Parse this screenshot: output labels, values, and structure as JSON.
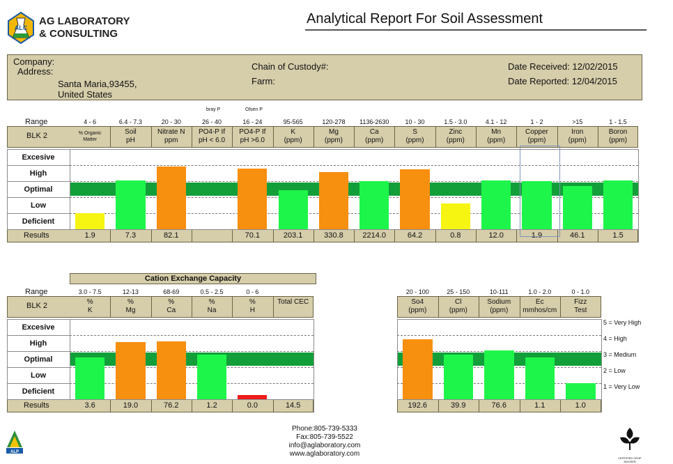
{
  "header": {
    "logo_line1": "AG LABORATORY",
    "logo_line2": "& CONSULTING",
    "logo_badge": "ALC",
    "title": "Analytical Report For Soil Assessment"
  },
  "info": {
    "company_label": "Company:",
    "address_label": "Address:",
    "address_line1": "Santa Maria,93455,",
    "address_line2": "United States",
    "custody_label": "Chain of Custody#:",
    "farm_label": "Farm:",
    "date_received": "Date Received: 12/02/2015",
    "date_reported": "Date Reported: 12/04/2015"
  },
  "levels": [
    "Excesive",
    "High",
    "Optimal",
    "Low",
    "Deficient"
  ],
  "levels_bottom": [
    "Excesive",
    "High",
    "Optimal",
    "Low",
    "Deficient"
  ],
  "range_label": "Range",
  "sample": "BLK 2",
  "results_label": "Results",
  "colors": {
    "yellow": "#f5f511",
    "green": "#1ef54a",
    "orange": "#f78f0f",
    "red": "#ee1c1c",
    "optimal_band": "#129f3a",
    "header_bg": "#d6cdaa"
  },
  "chart_data": [
    {
      "type": "bar",
      "title": "",
      "scale": "1 = Deficient, 2 = Low, 3 = Optimal, 4 = High, 5 = Excesive",
      "notes": [
        "bray P",
        "Olsen P"
      ],
      "categories": [
        {
          "label": [
            "% Organic",
            "Matter"
          ],
          "range": "4 - 6",
          "result": "1.9",
          "level": 1.0,
          "color": "yellow"
        },
        {
          "label": [
            "Soil",
            "pH"
          ],
          "range": "6.4 - 7.3",
          "result": "7.3",
          "level": 3.05,
          "color": "green"
        },
        {
          "label": [
            "Nitrate N",
            "ppm"
          ],
          "range": "20 - 30",
          "result": "82.1",
          "level": 3.9,
          "color": "orange"
        },
        {
          "label": [
            "PO4-P If",
            "pH < 6.0"
          ],
          "range": "26 - 40",
          "result": "",
          "level": 0,
          "color": "none"
        },
        {
          "label": [
            "PO4-P If",
            "pH >6.0"
          ],
          "range": "16 - 24",
          "result": "70.1",
          "level": 3.8,
          "color": "orange"
        },
        {
          "label": [
            "K",
            "(ppm)"
          ],
          "range": "95-565",
          "result": "203.1",
          "level": 2.45,
          "color": "green"
        },
        {
          "label": [
            "Mg",
            "(ppm)"
          ],
          "range": "120-278",
          "result": "330.8",
          "level": 3.55,
          "color": "orange"
        },
        {
          "label": [
            "Ca",
            "(ppm)"
          ],
          "range": "1136-2630",
          "result": "2214.0",
          "level": 3.0,
          "color": "green"
        },
        {
          "label": [
            "S",
            "(ppm)"
          ],
          "range": "10 - 30",
          "result": "64.2",
          "level": 3.75,
          "color": "orange"
        },
        {
          "label": [
            "Zinc",
            "(ppm)"
          ],
          "range": "1.5 - 3.0",
          "result": "0.8",
          "level": 1.6,
          "color": "yellow"
        },
        {
          "label": [
            "Mn",
            "(ppm)"
          ],
          "range": "4.1 - 12",
          "result": "12.0",
          "level": 3.05,
          "color": "green"
        },
        {
          "label": [
            "Copper",
            "(ppm)"
          ],
          "range": "1 - 2",
          "result": "1.9",
          "level": 3.0,
          "color": "green"
        },
        {
          "label": [
            "Iron",
            "(ppm)"
          ],
          "range": ">15",
          "result": "46.1",
          "level": 2.7,
          "color": "green"
        },
        {
          "label": [
            "Boron",
            "(ppm)"
          ],
          "range": "1 - 1.5",
          "result": "1.5",
          "level": 3.05,
          "color": "green"
        }
      ]
    },
    {
      "type": "bar",
      "title": "Cation Exchange Capacity",
      "categories": [
        {
          "label": [
            "%",
            "K"
          ],
          "range": "3.0 - 7.5",
          "result": "3.6",
          "level": 2.6,
          "color": "green"
        },
        {
          "label": [
            "%",
            "Mg"
          ],
          "range": "12-13",
          "result": "19.0",
          "level": 3.55,
          "color": "orange"
        },
        {
          "label": [
            "%",
            "Ca"
          ],
          "range": "68-69",
          "result": "76.2",
          "level": 3.6,
          "color": "orange"
        },
        {
          "label": [
            "%",
            "Na"
          ],
          "range": "0.5 - 2.5",
          "result": "1.2",
          "level": 2.8,
          "color": "green"
        },
        {
          "label": [
            "%",
            "H"
          ],
          "range": "0 - 6",
          "result": "0.0",
          "level": 0.25,
          "color": "red"
        },
        {
          "label": [
            "Total CEC",
            ""
          ],
          "range": "",
          "result": "14.5",
          "level": 0,
          "color": "none"
        }
      ]
    },
    {
      "type": "bar",
      "title": "",
      "categories": [
        {
          "label": [
            "So4",
            "(ppm)"
          ],
          "range": "20 - 100",
          "result": "192.6",
          "level": 3.75,
          "color": "orange"
        },
        {
          "label": [
            "Cl",
            "(ppm)"
          ],
          "range": "25 - 150",
          "result": "39.9",
          "level": 2.8,
          "color": "green"
        },
        {
          "label": [
            "Sodium",
            "(ppm)"
          ],
          "range": "10-111",
          "result": "76.6",
          "level": 3.05,
          "color": "green"
        },
        {
          "label": [
            "Ec",
            "mmhos/cm"
          ],
          "range": "1.0 - 2.0",
          "result": "1.1",
          "level": 2.6,
          "color": "green"
        },
        {
          "label": [
            "Fizz",
            "Test"
          ],
          "range": "0 - 1.0",
          "result": "1.0",
          "level": 1.0,
          "color": "green"
        }
      ],
      "legend": [
        "5 = Very High",
        "4 = High",
        "3 = Medium",
        "2 = Low",
        "1 = Very Low"
      ]
    }
  ],
  "footer": {
    "phone": "Phone:805-739-5333",
    "fax": "Fax:805-739-5522",
    "email": "info@aglaboratory.com",
    "web": "www.aglaboratory.com",
    "left_logo": "ALP",
    "right_logo_caption": "CERTIFIED CROP ADVISER"
  }
}
